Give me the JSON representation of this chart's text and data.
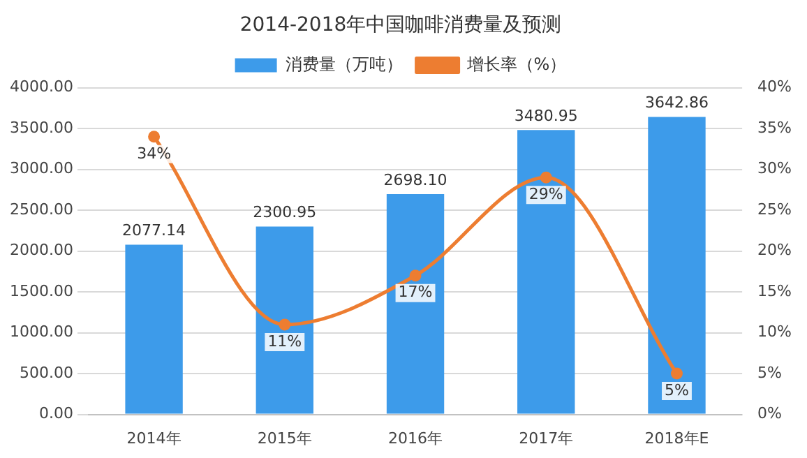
{
  "chart_data": {
    "type": "bar",
    "title": "2014-2018年中国咖啡消费量及预测",
    "categories": [
      "2014年",
      "2015年",
      "2016年",
      "2017年",
      "2018年E"
    ],
    "series": [
      {
        "name": "消费量（万吨）",
        "color": "#3d9bea",
        "values": [
          2077.14,
          2300.95,
          2698.1,
          3480.95,
          3642.86
        ],
        "value_labels": [
          "2077.14",
          "2300.95",
          "2698.10",
          "3480.95",
          "3642.86"
        ]
      },
      {
        "name": "增长率（%）",
        "type": "line",
        "axis": "y2",
        "color": "#ed7d31",
        "values": [
          34,
          11,
          17,
          29,
          5
        ],
        "value_labels": [
          "34%",
          "11%",
          "17%",
          "29%",
          "5%"
        ]
      }
    ],
    "ylim": [
      0,
      4000
    ],
    "yticks": [
      {
        "value": 0,
        "label": "0.00"
      },
      {
        "value": 500,
        "label": "500.00"
      },
      {
        "value": 1000,
        "label": "1000.00"
      },
      {
        "value": 1500,
        "label": "1500.00"
      },
      {
        "value": 2000,
        "label": "2000.00"
      },
      {
        "value": 2500,
        "label": "2500.00"
      },
      {
        "value": 3000,
        "label": "3000.00"
      },
      {
        "value": 3500,
        "label": "3500.00"
      },
      {
        "value": 4000,
        "label": "4000.00"
      }
    ],
    "y2lim": [
      0,
      40
    ],
    "y2ticks": [
      {
        "value": 0,
        "label": "0%"
      },
      {
        "value": 5,
        "label": "5%"
      },
      {
        "value": 10,
        "label": "10%"
      },
      {
        "value": 15,
        "label": "15%"
      },
      {
        "value": 20,
        "label": "20%"
      },
      {
        "value": 25,
        "label": "25%"
      },
      {
        "value": 30,
        "label": "30%"
      },
      {
        "value": 35,
        "label": "35%"
      },
      {
        "value": 40,
        "label": "40%"
      }
    ],
    "grid": "y",
    "legend": "top",
    "marker": "circle",
    "line_style": "solid"
  }
}
